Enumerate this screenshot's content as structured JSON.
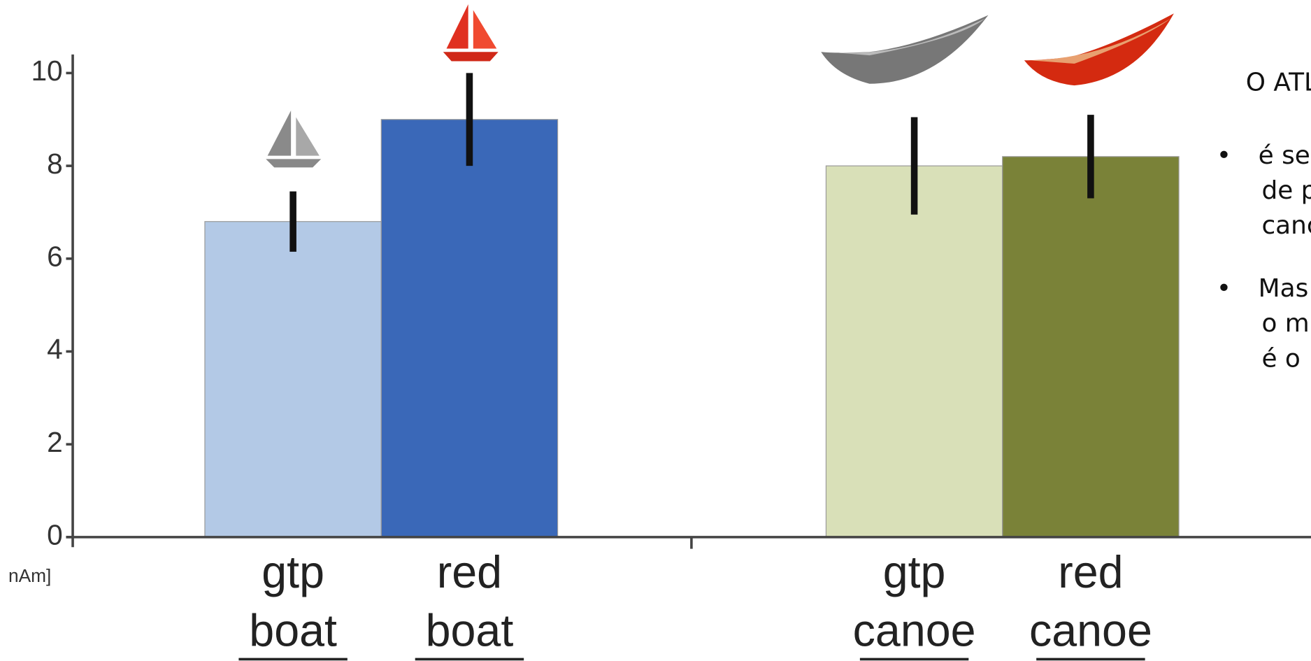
{
  "chart_data": {
    "type": "bar",
    "y_label": "nAm]",
    "categories": [
      [
        "gtp",
        "boat"
      ],
      [
        "red",
        "boat"
      ],
      [
        "gtp",
        "canoe"
      ],
      [
        "red",
        "canoe"
      ]
    ],
    "values": [
      6.8,
      9.0,
      8.0,
      8.2
    ],
    "errors": [
      0.65,
      1.0,
      1.05,
      0.9
    ],
    "colors": [
      "#b3c9e6",
      "#3a68b8",
      "#d9e0b8",
      "#7a8238"
    ],
    "ylim": [
      0,
      10.4
    ],
    "yticks": [
      0,
      2,
      4,
      6,
      8,
      10
    ]
  },
  "text_panel": {
    "heading": "O ATL",
    "bullets": [
      [
        "é se",
        "de p",
        "canc"
      ],
      [
        "Mas",
        "o m",
        "é o"
      ]
    ]
  }
}
